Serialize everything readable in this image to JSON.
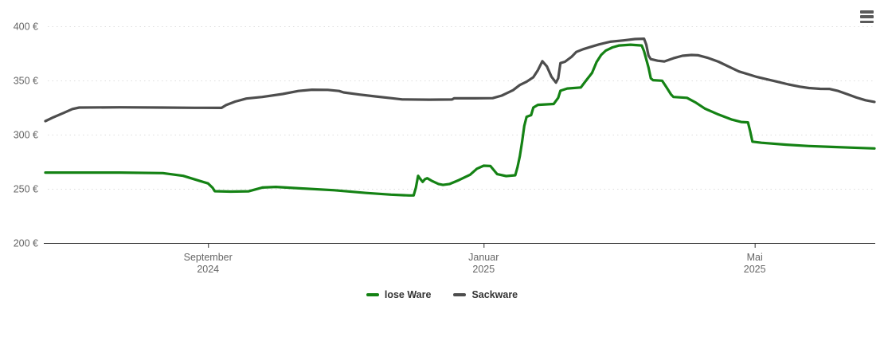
{
  "chart": {
    "background_color": "#ffffff",
    "axis_line_color": "#333333",
    "grid_line_color": "#dddddd",
    "axis_label_color": "#666666",
    "legend_text_color": "#333333",
    "context_menu": {
      "icon": "hamburger-icon",
      "bar_color": "#5a5a5a"
    }
  },
  "chart_data": {
    "type": "line",
    "title": "",
    "xlabel": "",
    "ylabel": "",
    "y_unit": "€",
    "ylim": [
      200,
      400
    ],
    "y_ticks": [
      200,
      250,
      300,
      350,
      400
    ],
    "y_tick_labels": [
      "200 €",
      "250 €",
      "300 €",
      "350 €",
      "400 €"
    ],
    "x_range": [
      "2024-06-21",
      "2025-06-23"
    ],
    "x_ticks": [
      {
        "date": "2024-09-01",
        "label": "September",
        "sublabel": "2024"
      },
      {
        "date": "2025-01-01",
        "label": "Januar",
        "sublabel": "2025"
      },
      {
        "date": "2025-05-01",
        "label": "Mai",
        "sublabel": "2025"
      }
    ],
    "grid": "horizontal-dotted",
    "legend_position": "bottom-center",
    "series": [
      {
        "name": "lose Ware",
        "color": "#148214",
        "points": [
          [
            "2024-06-21",
            265
          ],
          [
            "2024-07-06",
            265
          ],
          [
            "2024-07-24",
            265
          ],
          [
            "2024-08-12",
            264.5
          ],
          [
            "2024-08-21",
            262
          ],
          [
            "2024-08-28",
            257.5
          ],
          [
            "2024-09-01",
            255
          ],
          [
            "2024-09-03",
            251
          ],
          [
            "2024-09-04",
            247.8
          ],
          [
            "2024-09-11",
            247.4
          ],
          [
            "2024-09-19",
            247.7
          ],
          [
            "2024-09-25",
            251.2
          ],
          [
            "2024-10-01",
            251.8
          ],
          [
            "2024-10-13",
            250.3
          ],
          [
            "2024-10-27",
            248.7
          ],
          [
            "2024-11-10",
            246.2
          ],
          [
            "2024-11-21",
            244.6
          ],
          [
            "2024-11-29",
            243.9
          ],
          [
            "2024-12-01",
            243.9
          ],
          [
            "2024-12-02",
            251
          ],
          [
            "2024-12-03",
            262
          ],
          [
            "2024-12-04",
            259
          ],
          [
            "2024-12-05",
            256.4
          ],
          [
            "2024-12-06",
            258.8
          ],
          [
            "2024-12-07",
            259.8
          ],
          [
            "2024-12-09",
            257.4
          ],
          [
            "2024-12-12",
            254.5
          ],
          [
            "2024-12-14",
            253.6
          ],
          [
            "2024-12-17",
            254.5
          ],
          [
            "2024-12-21",
            258
          ],
          [
            "2024-12-26",
            263
          ],
          [
            "2024-12-29",
            268.5
          ],
          [
            "2025-01-01",
            271.3
          ],
          [
            "2025-01-04",
            271
          ],
          [
            "2025-01-07",
            263.5
          ],
          [
            "2025-01-11",
            261.8
          ],
          [
            "2025-01-15",
            262.5
          ],
          [
            "2025-01-16",
            270
          ],
          [
            "2025-01-17",
            280
          ],
          [
            "2025-01-18",
            293
          ],
          [
            "2025-01-19",
            308
          ],
          [
            "2025-01-20",
            316.5
          ],
          [
            "2025-01-22",
            318
          ],
          [
            "2025-01-23",
            325
          ],
          [
            "2025-01-25",
            327.5
          ],
          [
            "2025-02-01",
            328.3
          ],
          [
            "2025-02-03",
            334
          ],
          [
            "2025-02-04",
            340.5
          ],
          [
            "2025-02-07",
            342.6
          ],
          [
            "2025-02-13",
            343.5
          ],
          [
            "2025-02-15",
            349
          ],
          [
            "2025-02-18",
            357
          ],
          [
            "2025-02-20",
            367
          ],
          [
            "2025-02-22",
            373.5
          ],
          [
            "2025-02-24",
            377.5
          ],
          [
            "2025-02-27",
            380.5
          ],
          [
            "2025-03-02",
            382.3
          ],
          [
            "2025-03-07",
            383
          ],
          [
            "2025-03-12",
            382.3
          ],
          [
            "2025-03-13",
            377
          ],
          [
            "2025-03-15",
            362
          ],
          [
            "2025-03-16",
            352
          ],
          [
            "2025-03-17",
            350.3
          ],
          [
            "2025-03-21",
            349.8
          ],
          [
            "2025-03-23",
            343.5
          ],
          [
            "2025-03-25",
            337
          ],
          [
            "2025-03-26",
            334.8
          ],
          [
            "2025-04-01",
            334
          ],
          [
            "2025-04-05",
            329.5
          ],
          [
            "2025-04-09",
            324
          ],
          [
            "2025-04-15",
            318.5
          ],
          [
            "2025-04-21",
            313.8
          ],
          [
            "2025-04-25",
            311.7
          ],
          [
            "2025-04-28",
            311.3
          ],
          [
            "2025-04-29",
            303
          ],
          [
            "2025-04-30",
            293.5
          ],
          [
            "2025-05-04",
            292.5
          ],
          [
            "2025-05-15",
            290.7
          ],
          [
            "2025-05-25",
            289.5
          ],
          [
            "2025-06-04",
            288.7
          ],
          [
            "2025-06-13",
            288
          ],
          [
            "2025-06-23",
            287.3
          ]
        ]
      },
      {
        "name": "Sackware",
        "color": "#4d4d4d",
        "points": [
          [
            "2024-06-21",
            312.5
          ],
          [
            "2024-06-24",
            315.5
          ],
          [
            "2024-06-29",
            320
          ],
          [
            "2024-07-03",
            323.7
          ],
          [
            "2024-07-06",
            325
          ],
          [
            "2024-07-24",
            325.2
          ],
          [
            "2024-08-12",
            325
          ],
          [
            "2024-08-26",
            324.8
          ],
          [
            "2024-09-07",
            324.7
          ],
          [
            "2024-09-09",
            327.3
          ],
          [
            "2024-09-13",
            330.5
          ],
          [
            "2024-09-18",
            333.3
          ],
          [
            "2024-09-25",
            334.8
          ],
          [
            "2024-10-04",
            337.5
          ],
          [
            "2024-10-11",
            340.3
          ],
          [
            "2024-10-17",
            341.5
          ],
          [
            "2024-10-24",
            341.3
          ],
          [
            "2024-10-29",
            340.3
          ],
          [
            "2024-10-31",
            339
          ],
          [
            "2024-11-07",
            337
          ],
          [
            "2024-11-14",
            335.3
          ],
          [
            "2024-11-21",
            333.7
          ],
          [
            "2024-11-26",
            332.5
          ],
          [
            "2024-12-08",
            332.3
          ],
          [
            "2024-12-18",
            332.4
          ],
          [
            "2024-12-19",
            333.6
          ],
          [
            "2024-12-28",
            333.5
          ],
          [
            "2025-01-05",
            333.7
          ],
          [
            "2025-01-09",
            336
          ],
          [
            "2025-01-14",
            341
          ],
          [
            "2025-01-17",
            345.8
          ],
          [
            "2025-01-20",
            348.8
          ],
          [
            "2025-01-23",
            353
          ],
          [
            "2025-01-25",
            359.5
          ],
          [
            "2025-01-27",
            367.8
          ],
          [
            "2025-01-29",
            363
          ],
          [
            "2025-01-31",
            353.5
          ],
          [
            "2025-02-02",
            348
          ],
          [
            "2025-02-03",
            352
          ],
          [
            "2025-02-04",
            366
          ],
          [
            "2025-02-06",
            367.3
          ],
          [
            "2025-02-09",
            372
          ],
          [
            "2025-02-11",
            376.3
          ],
          [
            "2025-02-14",
            378.8
          ],
          [
            "2025-02-17",
            380.7
          ],
          [
            "2025-02-21",
            383.2
          ],
          [
            "2025-02-26",
            385.7
          ],
          [
            "2025-03-04",
            387
          ],
          [
            "2025-03-09",
            388.2
          ],
          [
            "2025-03-13",
            388.5
          ],
          [
            "2025-03-14",
            383
          ],
          [
            "2025-03-15",
            373
          ],
          [
            "2025-03-16",
            369.7
          ],
          [
            "2025-03-19",
            368.2
          ],
          [
            "2025-03-22",
            367.6
          ],
          [
            "2025-03-26",
            370.5
          ],
          [
            "2025-03-30",
            372.8
          ],
          [
            "2025-04-03",
            373.5
          ],
          [
            "2025-04-06",
            373.2
          ],
          [
            "2025-04-10",
            371
          ],
          [
            "2025-04-15",
            367.3
          ],
          [
            "2025-04-20",
            362.3
          ],
          [
            "2025-04-24",
            358.3
          ],
          [
            "2025-04-28",
            355.8
          ],
          [
            "2025-05-02",
            353.2
          ],
          [
            "2025-05-07",
            350.8
          ],
          [
            "2025-05-11",
            348.8
          ],
          [
            "2025-05-16",
            346.3
          ],
          [
            "2025-05-21",
            344.3
          ],
          [
            "2025-05-25",
            343
          ],
          [
            "2025-05-30",
            342.3
          ],
          [
            "2025-06-03",
            342.2
          ],
          [
            "2025-06-07",
            340.3
          ],
          [
            "2025-06-11",
            337.3
          ],
          [
            "2025-06-15",
            334.3
          ],
          [
            "2025-06-19",
            331.8
          ],
          [
            "2025-06-23",
            330.2
          ]
        ]
      }
    ]
  }
}
